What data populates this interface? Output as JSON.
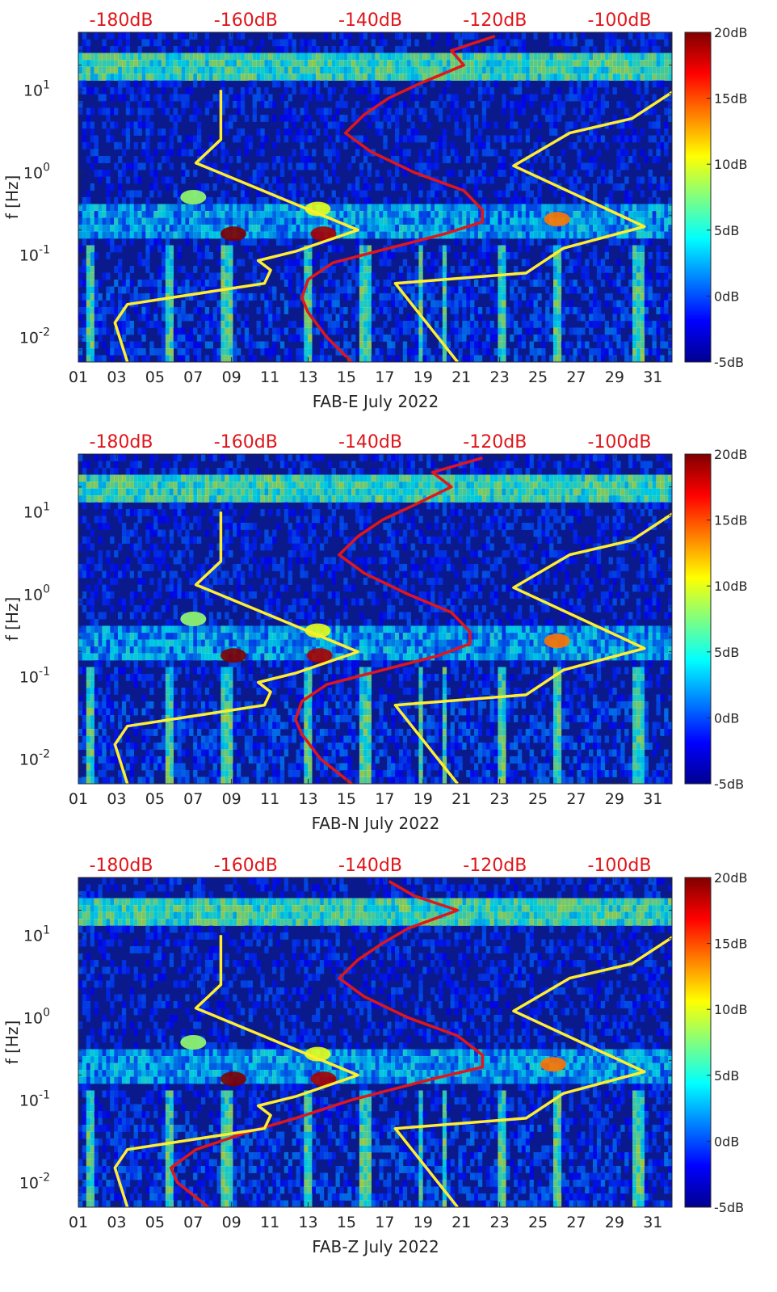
{
  "colors": {
    "red_curve": "#e0161b",
    "yellow_curve": "#ffee2e",
    "background_low": "#0a1a8c",
    "colormap": [
      "#00008f",
      "#0000ff",
      "#0080ff",
      "#00ffff",
      "#80ff80",
      "#ffff00",
      "#ff8000",
      "#ff0000",
      "#800000"
    ]
  },
  "chart_data": [
    {
      "type": "heatmap",
      "station": "FAB-E",
      "xlabel": "FAB-E July 2022",
      "ylabel": "f [Hz]",
      "x_tick_labels": [
        "01",
        "03",
        "05",
        "07",
        "09",
        "11",
        "13",
        "15",
        "17",
        "19",
        "21",
        "23",
        "25",
        "27",
        "29",
        "31"
      ],
      "xlim_days": [
        1,
        32
      ],
      "y_scale": "log",
      "ylim_hz": [
        0.005,
        50
      ],
      "y_tick_labels": [
        {
          "value": 10,
          "base": "10",
          "exp": "1"
        },
        {
          "value": 1,
          "base": "10",
          "exp": "0"
        },
        {
          "value": 0.1,
          "base": "10",
          "exp": "-1"
        },
        {
          "value": 0.01,
          "base": "10",
          "exp": "-2"
        }
      ],
      "top_axis_labels": [
        "-180dB",
        "-160dB",
        "-140dB",
        "-120dB",
        "-100dB"
      ],
      "top_axis_db": [
        -180,
        -160,
        -140,
        -120,
        -100
      ],
      "colorbar": {
        "labels": [
          "20dB",
          "15dB",
          "10dB",
          "5dB",
          "0dB",
          "-5dB"
        ],
        "values": [
          20,
          15,
          10,
          5,
          0,
          -5
        ],
        "range": [
          -5,
          20
        ]
      },
      "hotspots": [
        {
          "day": 9.1,
          "freq": 0.18,
          "db": 20
        },
        {
          "day": 13.8,
          "freq": 0.18,
          "db": 19
        },
        {
          "day": 26.0,
          "freq": 0.27,
          "db": 14
        },
        {
          "day": 13.5,
          "freq": 0.36,
          "db": 10
        },
        {
          "day": 7.0,
          "freq": 0.5,
          "db": 8
        }
      ],
      "median_curve": {
        "name": "median PSD",
        "points": [
          {
            "freq": 0.005,
            "db": -143
          },
          {
            "freq": 0.01,
            "db": -147
          },
          {
            "freq": 0.02,
            "db": -150
          },
          {
            "freq": 0.03,
            "db": -151
          },
          {
            "freq": 0.05,
            "db": -150
          },
          {
            "freq": 0.08,
            "db": -146
          },
          {
            "freq": 0.12,
            "db": -137
          },
          {
            "freq": 0.18,
            "db": -128
          },
          {
            "freq": 0.25,
            "db": -122
          },
          {
            "freq": 0.35,
            "db": -122
          },
          {
            "freq": 0.6,
            "db": -125
          },
          {
            "freq": 1.0,
            "db": -133
          },
          {
            "freq": 1.8,
            "db": -140
          },
          {
            "freq": 3.0,
            "db": -144
          },
          {
            "freq": 5.0,
            "db": -141
          },
          {
            "freq": 8.0,
            "db": -137
          },
          {
            "freq": 12.0,
            "db": -132
          },
          {
            "freq": 20.0,
            "db": -125
          },
          {
            "freq": 30.0,
            "db": -127
          },
          {
            "freq": 45.0,
            "db": -120
          }
        ]
      },
      "noise_models": [
        {
          "name": "low noise model",
          "points": [
            {
              "freq": 0.005,
              "db": -179
            },
            {
              "freq": 0.015,
              "db": -181
            },
            {
              "freq": 0.025,
              "db": -179
            },
            {
              "freq": 0.045,
              "db": -157
            },
            {
              "freq": 0.065,
              "db": -156
            },
            {
              "freq": 0.085,
              "db": -158
            },
            {
              "freq": 0.11,
              "db": -152
            },
            {
              "freq": 0.2,
              "db": -142
            },
            {
              "freq": 1.3,
              "db": -168
            },
            {
              "freq": 2.5,
              "db": -164
            },
            {
              "freq": 10,
              "db": -164
            }
          ]
        },
        {
          "name": "high noise model",
          "points": [
            {
              "freq": 0.005,
              "db": -126
            },
            {
              "freq": 0.045,
              "db": -136
            },
            {
              "freq": 0.06,
              "db": -115
            },
            {
              "freq": 0.12,
              "db": -109
            },
            {
              "freq": 0.22,
              "db": -96
            },
            {
              "freq": 1.2,
              "db": -117
            },
            {
              "freq": 3.0,
              "db": -108
            },
            {
              "freq": 4.5,
              "db": -98
            },
            {
              "freq": 10,
              "db": -91
            }
          ]
        }
      ]
    },
    {
      "type": "heatmap",
      "station": "FAB-N",
      "xlabel": "FAB-N July 2022",
      "ylabel": "f [Hz]",
      "x_tick_labels": [
        "01",
        "03",
        "05",
        "07",
        "09",
        "11",
        "13",
        "15",
        "17",
        "19",
        "21",
        "23",
        "25",
        "27",
        "29",
        "31"
      ],
      "xlim_days": [
        1,
        32
      ],
      "y_scale": "log",
      "ylim_hz": [
        0.005,
        50
      ],
      "y_tick_labels": [
        {
          "value": 10,
          "base": "10",
          "exp": "1"
        },
        {
          "value": 1,
          "base": "10",
          "exp": "0"
        },
        {
          "value": 0.1,
          "base": "10",
          "exp": "-1"
        },
        {
          "value": 0.01,
          "base": "10",
          "exp": "-2"
        }
      ],
      "top_axis_labels": [
        "-180dB",
        "-160dB",
        "-140dB",
        "-120dB",
        "-100dB"
      ],
      "top_axis_db": [
        -180,
        -160,
        -140,
        -120,
        -100
      ],
      "colorbar": {
        "labels": [
          "20dB",
          "15dB",
          "10dB",
          "5dB",
          "0dB",
          "-5dB"
        ],
        "values": [
          20,
          15,
          10,
          5,
          0,
          -5
        ],
        "range": [
          -5,
          20
        ]
      },
      "hotspots": [
        {
          "day": 9.1,
          "freq": 0.18,
          "db": 20
        },
        {
          "day": 13.6,
          "freq": 0.18,
          "db": 19
        },
        {
          "day": 26.0,
          "freq": 0.27,
          "db": 14
        },
        {
          "day": 13.5,
          "freq": 0.36,
          "db": 10
        },
        {
          "day": 7.0,
          "freq": 0.5,
          "db": 8
        }
      ],
      "median_curve": {
        "name": "median PSD",
        "points": [
          {
            "freq": 0.005,
            "db": -143
          },
          {
            "freq": 0.01,
            "db": -148
          },
          {
            "freq": 0.02,
            "db": -151
          },
          {
            "freq": 0.03,
            "db": -152
          },
          {
            "freq": 0.05,
            "db": -151
          },
          {
            "freq": 0.08,
            "db": -147
          },
          {
            "freq": 0.12,
            "db": -138
          },
          {
            "freq": 0.18,
            "db": -129
          },
          {
            "freq": 0.25,
            "db": -124
          },
          {
            "freq": 0.35,
            "db": -124
          },
          {
            "freq": 0.6,
            "db": -127
          },
          {
            "freq": 1.0,
            "db": -134
          },
          {
            "freq": 1.8,
            "db": -141
          },
          {
            "freq": 3.0,
            "db": -145
          },
          {
            "freq": 5.0,
            "db": -142
          },
          {
            "freq": 8.0,
            "db": -138
          },
          {
            "freq": 12.0,
            "db": -133
          },
          {
            "freq": 20.0,
            "db": -127
          },
          {
            "freq": 30.0,
            "db": -130
          },
          {
            "freq": 45.0,
            "db": -122
          }
        ]
      },
      "noise_models": [
        {
          "name": "low noise model",
          "points": [
            {
              "freq": 0.005,
              "db": -179
            },
            {
              "freq": 0.015,
              "db": -181
            },
            {
              "freq": 0.025,
              "db": -179
            },
            {
              "freq": 0.045,
              "db": -157
            },
            {
              "freq": 0.065,
              "db": -156
            },
            {
              "freq": 0.085,
              "db": -158
            },
            {
              "freq": 0.11,
              "db": -152
            },
            {
              "freq": 0.2,
              "db": -142
            },
            {
              "freq": 1.3,
              "db": -168
            },
            {
              "freq": 2.5,
              "db": -164
            },
            {
              "freq": 10,
              "db": -164
            }
          ]
        },
        {
          "name": "high noise model",
          "points": [
            {
              "freq": 0.005,
              "db": -126
            },
            {
              "freq": 0.045,
              "db": -136
            },
            {
              "freq": 0.06,
              "db": -115
            },
            {
              "freq": 0.12,
              "db": -109
            },
            {
              "freq": 0.22,
              "db": -96
            },
            {
              "freq": 1.2,
              "db": -117
            },
            {
              "freq": 3.0,
              "db": -108
            },
            {
              "freq": 4.5,
              "db": -98
            },
            {
              "freq": 10,
              "db": -91
            }
          ]
        }
      ]
    },
    {
      "type": "heatmap",
      "station": "FAB-Z",
      "xlabel": "FAB-Z July 2022",
      "ylabel": "f [Hz]",
      "x_tick_labels": [
        "01",
        "03",
        "05",
        "07",
        "09",
        "11",
        "13",
        "15",
        "17",
        "19",
        "21",
        "23",
        "25",
        "27",
        "29",
        "31"
      ],
      "xlim_days": [
        1,
        32
      ],
      "y_scale": "log",
      "ylim_hz": [
        0.005,
        50
      ],
      "y_tick_labels": [
        {
          "value": 10,
          "base": "10",
          "exp": "1"
        },
        {
          "value": 1,
          "base": "10",
          "exp": "0"
        },
        {
          "value": 0.1,
          "base": "10",
          "exp": "-1"
        },
        {
          "value": 0.01,
          "base": "10",
          "exp": "-2"
        }
      ],
      "top_axis_labels": [
        "-180dB",
        "-160dB",
        "-140dB",
        "-120dB",
        "-100dB"
      ],
      "top_axis_db": [
        -180,
        -160,
        -140,
        -120,
        -100
      ],
      "colorbar": {
        "labels": [
          "20dB",
          "15dB",
          "10dB",
          "5dB",
          "0dB",
          "-5dB"
        ],
        "values": [
          20,
          15,
          10,
          5,
          0,
          -5
        ],
        "range": [
          -5,
          20
        ]
      },
      "hotspots": [
        {
          "day": 9.1,
          "freq": 0.18,
          "db": 20
        },
        {
          "day": 13.8,
          "freq": 0.18,
          "db": 19
        },
        {
          "day": 25.8,
          "freq": 0.27,
          "db": 14
        },
        {
          "day": 13.5,
          "freq": 0.36,
          "db": 10
        },
        {
          "day": 7.0,
          "freq": 0.5,
          "db": 8
        }
      ],
      "median_curve": {
        "name": "median PSD",
        "points": [
          {
            "freq": 0.005,
            "db": -166
          },
          {
            "freq": 0.01,
            "db": -171
          },
          {
            "freq": 0.015,
            "db": -172
          },
          {
            "freq": 0.025,
            "db": -168
          },
          {
            "freq": 0.04,
            "db": -160
          },
          {
            "freq": 0.06,
            "db": -152
          },
          {
            "freq": 0.1,
            "db": -143
          },
          {
            "freq": 0.18,
            "db": -130
          },
          {
            "freq": 0.25,
            "db": -122
          },
          {
            "freq": 0.35,
            "db": -122
          },
          {
            "freq": 0.6,
            "db": -126
          },
          {
            "freq": 1.0,
            "db": -134
          },
          {
            "freq": 1.8,
            "db": -141
          },
          {
            "freq": 3.0,
            "db": -145
          },
          {
            "freq": 5.0,
            "db": -142
          },
          {
            "freq": 8.0,
            "db": -138
          },
          {
            "freq": 12.0,
            "db": -134
          },
          {
            "freq": 20.0,
            "db": -126
          },
          {
            "freq": 30.0,
            "db": -133
          },
          {
            "freq": 45.0,
            "db": -137
          }
        ]
      },
      "noise_models": [
        {
          "name": "low noise model",
          "points": [
            {
              "freq": 0.005,
              "db": -179
            },
            {
              "freq": 0.015,
              "db": -181
            },
            {
              "freq": 0.025,
              "db": -179
            },
            {
              "freq": 0.045,
              "db": -157
            },
            {
              "freq": 0.065,
              "db": -156
            },
            {
              "freq": 0.085,
              "db": -158
            },
            {
              "freq": 0.11,
              "db": -152
            },
            {
              "freq": 0.2,
              "db": -142
            },
            {
              "freq": 1.3,
              "db": -168
            },
            {
              "freq": 2.5,
              "db": -164
            },
            {
              "freq": 10,
              "db": -164
            }
          ]
        },
        {
          "name": "high noise model",
          "points": [
            {
              "freq": 0.005,
              "db": -126
            },
            {
              "freq": 0.045,
              "db": -136
            },
            {
              "freq": 0.06,
              "db": -115
            },
            {
              "freq": 0.12,
              "db": -109
            },
            {
              "freq": 0.22,
              "db": -96
            },
            {
              "freq": 1.2,
              "db": -117
            },
            {
              "freq": 3.0,
              "db": -108
            },
            {
              "freq": 4.5,
              "db": -98
            },
            {
              "freq": 10,
              "db": -91
            }
          ]
        }
      ]
    }
  ]
}
